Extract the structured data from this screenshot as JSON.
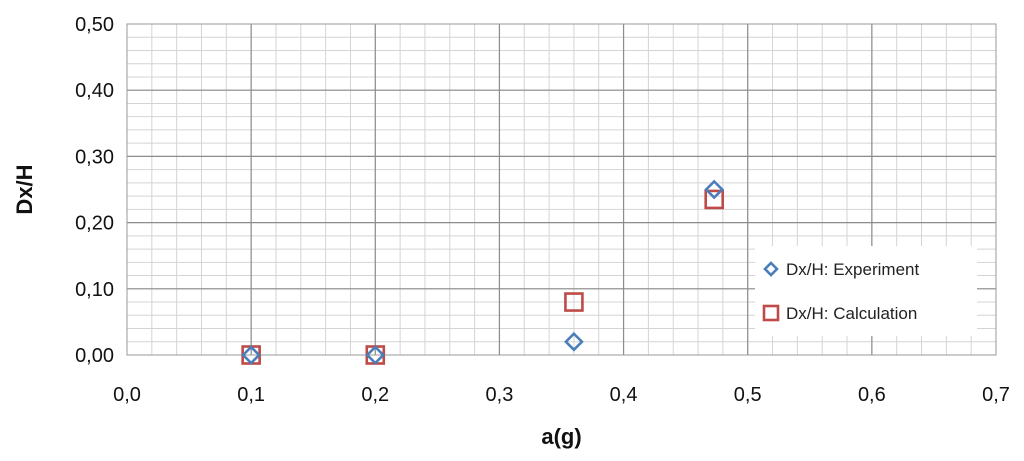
{
  "chart_data": {
    "type": "scatter",
    "title": "",
    "xlabel": "a(g)",
    "ylabel": "Dx/H",
    "xlim": [
      0,
      0.7
    ],
    "ylim": [
      0,
      0.5
    ],
    "x_major_ticks": [
      "0,0",
      "0,1",
      "0,2",
      "0,3",
      "0,4",
      "0,5",
      "0,6",
      "0,7"
    ],
    "y_major_ticks": [
      "0,00",
      "0,10",
      "0,20",
      "0,30",
      "0,40",
      "0,50"
    ],
    "x_minor_step": 0.02,
    "y_minor_step": 0.02,
    "grid": true,
    "legend_position": "bottom-right",
    "series": [
      {
        "name": "Dx/H: Experiment",
        "marker": "diamond",
        "color": "#4a7ebb",
        "x": [
          0.1,
          0.2,
          0.36,
          0.473
        ],
        "y": [
          0.0,
          0.0,
          0.02,
          0.25
        ]
      },
      {
        "name": "Dx/H: Calculation",
        "marker": "square",
        "color": "#be4b48",
        "x": [
          0.1,
          0.2,
          0.36,
          0.473
        ],
        "y": [
          0.0,
          0.0,
          0.08,
          0.235
        ]
      }
    ]
  }
}
